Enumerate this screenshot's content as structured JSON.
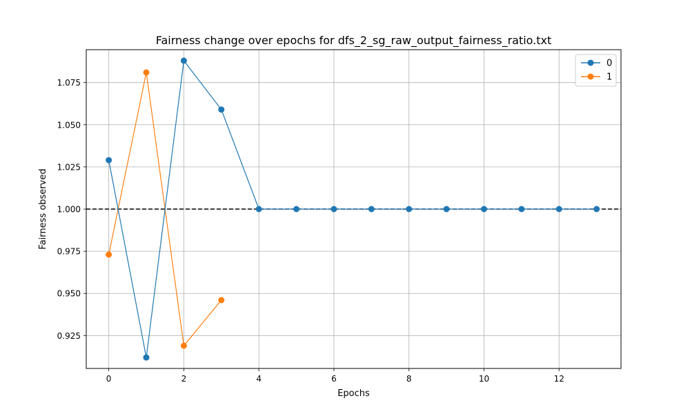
{
  "chart_data": {
    "type": "line",
    "title": "Fairness change over epochs for dfs_2_sg_raw_output_fairness_ratio.txt",
    "xlabel": "Epochs",
    "ylabel": "Fairness observed",
    "xlim": [
      -0.6,
      13.65
    ],
    "ylim": [
      0.9055,
      1.0945
    ],
    "x_ticks": [
      0,
      2,
      4,
      6,
      8,
      10,
      12
    ],
    "y_ticks": [
      0.925,
      0.95,
      0.975,
      1.0,
      1.025,
      1.05,
      1.075
    ],
    "x_tick_labels": [
      "0",
      "2",
      "4",
      "6",
      "8",
      "10",
      "12"
    ],
    "y_tick_labels": [
      "0.925",
      "0.950",
      "0.975",
      "1.000",
      "1.025",
      "1.050",
      "1.075"
    ],
    "grid": true,
    "legend_position": "top-right",
    "reference_line": {
      "y": 1.0,
      "style": "dashed",
      "color": "#000000"
    },
    "series": [
      {
        "name": "0",
        "color": "#1f77b4",
        "x": [
          0,
          1,
          2,
          3,
          4,
          5,
          6,
          7,
          8,
          9,
          10,
          11,
          12,
          13
        ],
        "values": [
          1.029,
          0.912,
          1.088,
          1.059,
          1.0,
          1.0,
          1.0,
          1.0,
          1.0,
          1.0,
          1.0,
          1.0,
          1.0,
          1.0
        ]
      },
      {
        "name": "1",
        "color": "#ff7f0e",
        "x": [
          0,
          1,
          2,
          3
        ],
        "values": [
          0.973,
          1.081,
          0.919,
          0.946
        ]
      }
    ]
  }
}
